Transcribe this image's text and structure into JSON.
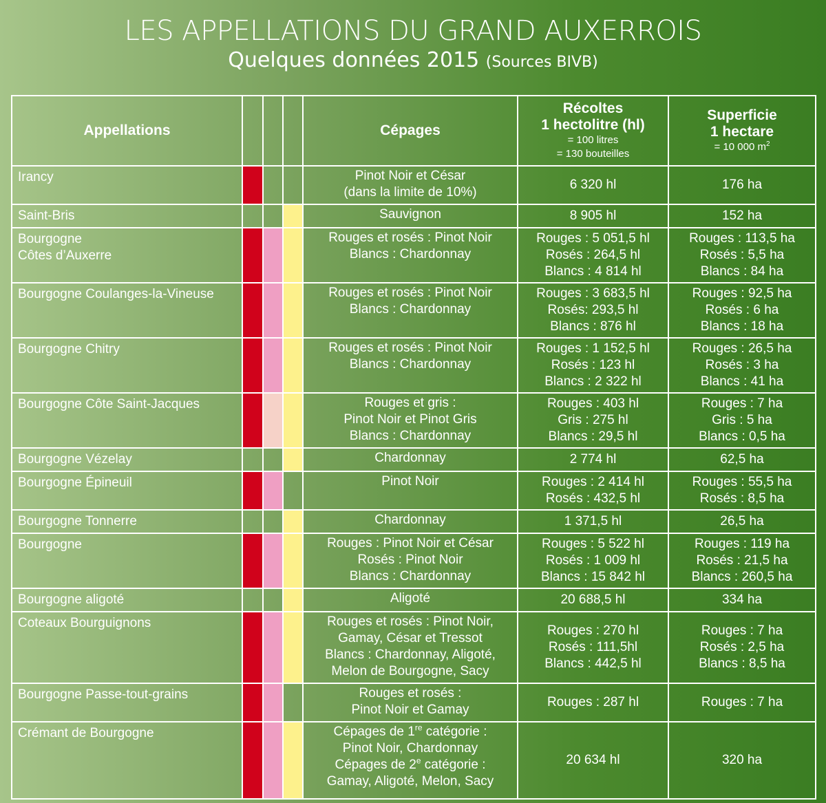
{
  "header": {
    "title": "LES APPELLATIONS DU GRAND AUXERROIS",
    "subtitle": "Quelques données 2015",
    "source": "(Sources BIVB)"
  },
  "columns": {
    "appellations": "Appellations",
    "cepages": "Cépages",
    "recoltes_title1": "Récoltes",
    "recoltes_title2": "1 hectolitre (hl)",
    "recoltes_note1": "= 100 litres",
    "recoltes_note2": "= 130 bouteilles",
    "superficie_title1": "Superficie",
    "superficie_title2": "1 hectare",
    "superficie_note": "= 10 000 m",
    "superficie_note_sup": "2"
  },
  "colors": {
    "red": "#d0021b",
    "pink": "#ef9fc3",
    "light_pink": "#f6d2c8",
    "yellow": "#fdf18c",
    "none": "transparent"
  },
  "rows": [
    {
      "appellation": [
        "Irancy"
      ],
      "colors": [
        "red",
        "none",
        "none"
      ],
      "cepages": [
        "Pinot Noir et César",
        "(dans la limite de 10%)"
      ],
      "recoltes": [
        "6 320 hl"
      ],
      "superficie": [
        "176 ha"
      ],
      "h": 56
    },
    {
      "appellation": [
        "Saint-Bris"
      ],
      "colors": [
        "none",
        "none",
        "yellow"
      ],
      "cepages": [
        "Sauvignon"
      ],
      "recoltes": [
        "8 905 hl"
      ],
      "superficie": [
        "152 ha"
      ],
      "h": 32
    },
    {
      "appellation": [
        "Bourgogne",
        "Côtes d’Auxerre"
      ],
      "colors": [
        "red",
        "pink",
        "yellow"
      ],
      "cepages": [
        "Rouges et rosés : Pinot Noir",
        "Blancs : Chardonnay"
      ],
      "recoltes": [
        "Rouges : 5 051,5 hl",
        "Rosés : 264,5 hl",
        "Blancs : 4 814 hl"
      ],
      "superficie": [
        "Rouges : 113,5 ha",
        "Rosés : 5,5 ha",
        "Blancs : 84 ha"
      ],
      "h": 80
    },
    {
      "appellation": [
        "Bourgogne Coulanges-la-Vineuse"
      ],
      "colors": [
        "red",
        "pink",
        "yellow"
      ],
      "cepages": [
        "Rouges et rosés : Pinot Noir",
        "Blancs : Chardonnay"
      ],
      "recoltes": [
        "Rouges : 3 683,5 hl",
        "Rosés: 293,5 hl",
        "Blancs : 876 hl"
      ],
      "superficie": [
        "Rouges : 92,5 ha",
        "Rosés : 6 ha",
        "Blancs : 18 ha"
      ],
      "h": 80
    },
    {
      "appellation": [
        "Bourgogne Chitry"
      ],
      "colors": [
        "red",
        "pink",
        "yellow"
      ],
      "cepages": [
        "Rouges et rosés : Pinot Noir",
        "Blancs : Chardonnay"
      ],
      "recoltes": [
        "Rouges : 1 152,5 hl",
        "Rosés : 123 hl",
        "Blancs : 2 322 hl"
      ],
      "superficie": [
        "Rouges : 26,5 ha",
        "Rosés : 3 ha",
        "Blancs : 41 ha"
      ],
      "h": 80
    },
    {
      "appellation": [
        "Bourgogne Côte Saint-Jacques"
      ],
      "colors": [
        "red",
        "light_pink",
        "yellow"
      ],
      "cepages": [
        "Rouges et gris :",
        "Pinot Noir et Pinot Gris",
        "Blancs : Chardonnay"
      ],
      "recoltes": [
        "Rouges : 403 hl",
        "Gris : 275 hl",
        "Blancs : 29,5 hl"
      ],
      "superficie": [
        "Rouges : 7 ha",
        "Gris : 5 ha",
        "Blancs : 0,5 ha"
      ],
      "h": 80
    },
    {
      "appellation": [
        "Bourgogne Vézelay"
      ],
      "colors": [
        "none",
        "none",
        "yellow"
      ],
      "cepages": [
        "Chardonnay"
      ],
      "recoltes": [
        "2 774 hl"
      ],
      "superficie": [
        "62,5 ha"
      ],
      "h": 32
    },
    {
      "appellation": [
        "Bourgogne Épineuil"
      ],
      "colors": [
        "red",
        "pink",
        "none"
      ],
      "cepages": [
        "Pinot Noir"
      ],
      "recoltes": [
        "Rouges : 2 414 hl",
        "Rosés : 432,5 hl"
      ],
      "superficie": [
        "Rouges : 55,5 ha",
        "Rosés : 8,5 ha"
      ],
      "h": 56
    },
    {
      "appellation": [
        "Bourgogne Tonnerre"
      ],
      "colors": [
        "none",
        "none",
        "yellow"
      ],
      "cepages": [
        "Chardonnay"
      ],
      "recoltes": [
        "1 371,5 hl"
      ],
      "superficie": [
        "26,5 ha"
      ],
      "h": 32
    },
    {
      "appellation": [
        "Bourgogne"
      ],
      "colors": [
        "red",
        "pink",
        "yellow"
      ],
      "cepages": [
        "Rouges : Pinot Noir et César",
        "Rosés : Pinot Noir",
        "Blancs : Chardonnay"
      ],
      "recoltes": [
        "Rouges : 5 522 hl",
        "Rosés : 1 009 hl",
        "Blancs : 15 842 hl"
      ],
      "superficie": [
        "Rouges : 119 ha",
        "Rosés : 21,5 ha",
        "Blancs : 260,5 ha"
      ],
      "h": 80
    },
    {
      "appellation": [
        "Bourgogne aligoté"
      ],
      "colors": [
        "none",
        "none",
        "yellow"
      ],
      "cepages": [
        "Aligoté"
      ],
      "recoltes": [
        "20 688,5 hl"
      ],
      "superficie": [
        "334 ha"
      ],
      "h": 32
    },
    {
      "appellation": [
        "Coteaux Bourguignons"
      ],
      "colors": [
        "red",
        "pink",
        "yellow"
      ],
      "cepages": [
        "Rouges et rosés : Pinot Noir,",
        "Gamay, César et Tressot",
        "Blancs : Chardonnay, Aligoté,",
        "Melon de Bourgogne, Sacy"
      ],
      "recoltes": [
        "Rouges : 270 hl",
        "Rosés : 111,5hl",
        "Blancs : 442,5 hl"
      ],
      "superficie": [
        "Rouges : 7 ha",
        "Rosés : 2,5 ha",
        "Blancs : 8,5 ha"
      ],
      "h": 104
    },
    {
      "appellation": [
        "Bourgogne Passe-tout-grains"
      ],
      "colors": [
        "red",
        "pink",
        "none"
      ],
      "cepages": [
        "Rouges et rosés :",
        "Pinot Noir et Gamay"
      ],
      "recoltes": [
        "Rouges : 287 hl"
      ],
      "superficie": [
        "Rouges : 7 ha"
      ],
      "h": 56
    },
    {
      "appellation": [
        "Crémant de Bourgogne"
      ],
      "colors": [
        "red",
        "pink",
        "yellow"
      ],
      "cepages": [
        "Cépages de 1re catégorie :",
        "Pinot Noir, Chardonnay",
        "Cépages de 2e catégorie :",
        "Gamay, Aligoté, Melon, Sacy"
      ],
      "recoltes": [
        "20 634 hl"
      ],
      "superficie": [
        "320 ha"
      ],
      "h": 112
    }
  ]
}
